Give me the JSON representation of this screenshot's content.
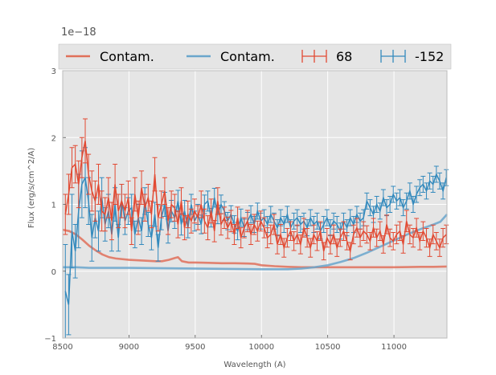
{
  "chart_data": {
    "type": "line",
    "title": "",
    "xlabel": "Wavelength (A)",
    "ylabel": "Flux (erg/s/cm^2/A)",
    "offset_text": "1e−18",
    "xlim": [
      8500,
      11400
    ],
    "ylim": [
      -1,
      3
    ],
    "x_ticks": [
      8500,
      9000,
      9500,
      10000,
      10500,
      11000
    ],
    "y_ticks": [
      -1,
      0,
      1,
      2,
      3
    ],
    "y_tick_labels": [
      "−1",
      "0",
      "1",
      "2",
      "3"
    ],
    "grid": true,
    "legend_position": "top",
    "legend": [
      {
        "label": "Contam.",
        "kind": "line",
        "color": "#e0705a"
      },
      {
        "label": "Contam.",
        "kind": "line",
        "color": "#6aa6cc"
      },
      {
        "label": "68",
        "kind": "errorbar",
        "color": "#e24a33"
      },
      {
        "label": "-152",
        "kind": "errorbar",
        "color": "#348abd"
      }
    ],
    "series": [
      {
        "name": "Contam.",
        "kind": "line",
        "color": "#e0705a",
        "x": [
          8500,
          8550,
          8600,
          8650,
          8700,
          8750,
          8800,
          8850,
          8900,
          9000,
          9100,
          9200,
          9250,
          9300,
          9350,
          9370,
          9400,
          9450,
          9500,
          9600,
          9700,
          9800,
          9900,
          9950,
          10000,
          10100,
          10200,
          10300,
          10400,
          10500,
          10600,
          10800,
          11000,
          11200,
          11300,
          11400
        ],
        "y": [
          0.62,
          0.6,
          0.55,
          0.47,
          0.38,
          0.31,
          0.25,
          0.21,
          0.19,
          0.17,
          0.16,
          0.15,
          0.15,
          0.17,
          0.2,
          0.21,
          0.15,
          0.13,
          0.13,
          0.125,
          0.12,
          0.12,
          0.115,
          0.11,
          0.09,
          0.075,
          0.065,
          0.06,
          0.06,
          0.06,
          0.06,
          0.06,
          0.06,
          0.065,
          0.065,
          0.07
        ]
      },
      {
        "name": "Contam.",
        "kind": "line",
        "color": "#6aa6cc",
        "x": [
          8500,
          8600,
          8700,
          8800,
          9000,
          9500,
          10000,
          10200,
          10300,
          10400,
          10500,
          10600,
          10700,
          10800,
          10900,
          11000,
          11100,
          11200,
          11300,
          11350,
          11400
        ],
        "y": [
          0.06,
          0.06,
          0.05,
          0.05,
          0.05,
          0.04,
          0.03,
          0.03,
          0.04,
          0.06,
          0.09,
          0.14,
          0.2,
          0.28,
          0.37,
          0.46,
          0.55,
          0.63,
          0.7,
          0.74,
          0.85
        ]
      },
      {
        "name": "68",
        "kind": "errorbar",
        "color": "#e24a33",
        "x": [
          8520,
          8545,
          8570,
          8595,
          8620,
          8645,
          8670,
          8695,
          8720,
          8745,
          8770,
          8795,
          8820,
          8845,
          8870,
          8895,
          8920,
          8945,
          8970,
          8995,
          9020,
          9045,
          9070,
          9095,
          9120,
          9145,
          9170,
          9195,
          9220,
          9245,
          9270,
          9295,
          9320,
          9345,
          9370,
          9395,
          9420,
          9445,
          9470,
          9495,
          9520,
          9545,
          9570,
          9595,
          9620,
          9645,
          9670,
          9695,
          9720,
          9745,
          9770,
          9795,
          9820,
          9845,
          9870,
          9895,
          9920,
          9945,
          9970,
          9995,
          10020,
          10045,
          10070,
          10095,
          10120,
          10145,
          10170,
          10195,
          10220,
          10245,
          10270,
          10295,
          10320,
          10345,
          10370,
          10395,
          10420,
          10445,
          10470,
          10495,
          10520,
          10545,
          10570,
          10595,
          10620,
          10645,
          10670,
          10695,
          10720,
          10745,
          10770,
          10795,
          10820,
          10845,
          10870,
          10895,
          10920,
          10945,
          10970,
          10995,
          11020,
          11045,
          11070,
          11095,
          11120,
          11145,
          11170,
          11195,
          11220,
          11245,
          11270,
          11295,
          11320,
          11345,
          11370,
          11395
        ],
        "y": [
          0.85,
          1.15,
          1.55,
          1.6,
          1.3,
          1.7,
          1.95,
          1.45,
          1.2,
          1.05,
          1.3,
          0.9,
          0.85,
          1.1,
          0.75,
          1.3,
          0.9,
          1.05,
          0.9,
          1.1,
          0.6,
          1.15,
          0.8,
          1.25,
          0.95,
          1.1,
          0.85,
          1.45,
          0.8,
          1.0,
          1.2,
          0.75,
          1.0,
          0.95,
          0.7,
          1.05,
          0.65,
          0.85,
          0.75,
          0.9,
          0.8,
          1.0,
          0.75,
          0.65,
          0.9,
          0.6,
          1.05,
          0.7,
          0.8,
          0.65,
          0.75,
          0.55,
          0.8,
          0.5,
          0.65,
          0.75,
          0.55,
          0.7,
          0.6,
          0.75,
          0.65,
          0.5,
          0.55,
          0.7,
          0.4,
          0.55,
          0.35,
          0.5,
          0.6,
          0.45,
          0.55,
          0.4,
          0.65,
          0.5,
          0.35,
          0.55,
          0.45,
          0.6,
          0.3,
          0.5,
          0.4,
          0.55,
          0.35,
          0.5,
          0.6,
          0.45,
          0.3,
          0.55,
          0.65,
          0.5,
          0.6,
          0.55,
          0.45,
          0.65,
          0.5,
          0.6,
          0.4,
          0.7,
          0.5,
          0.45,
          0.55,
          0.6,
          0.4,
          0.75,
          0.55,
          0.5,
          0.65,
          0.45,
          0.6,
          0.5,
          0.35,
          0.55,
          0.45,
          0.35,
          0.5,
          0.55
        ],
        "err": [
          0.3,
          0.3,
          0.3,
          0.28,
          0.35,
          0.3,
          0.33,
          0.3,
          0.3,
          0.3,
          0.3,
          0.3,
          0.25,
          0.3,
          0.28,
          0.3,
          0.25,
          0.25,
          0.25,
          0.25,
          0.2,
          0.25,
          0.25,
          0.25,
          0.2,
          0.2,
          0.2,
          0.25,
          0.2,
          0.2,
          0.2,
          0.2,
          0.2,
          0.2,
          0.2,
          0.2,
          0.18,
          0.2,
          0.18,
          0.18,
          0.18,
          0.2,
          0.18,
          0.18,
          0.18,
          0.16,
          0.2,
          0.16,
          0.16,
          0.16,
          0.16,
          0.15,
          0.16,
          0.15,
          0.15,
          0.16,
          0.15,
          0.15,
          0.15,
          0.15,
          0.15,
          0.15,
          0.14,
          0.15,
          0.14,
          0.15,
          0.14,
          0.14,
          0.14,
          0.14,
          0.14,
          0.14,
          0.14,
          0.14,
          0.14,
          0.14,
          0.14,
          0.14,
          0.13,
          0.14,
          0.14,
          0.14,
          0.13,
          0.13,
          0.14,
          0.13,
          0.13,
          0.14,
          0.14,
          0.13,
          0.14,
          0.13,
          0.13,
          0.14,
          0.13,
          0.14,
          0.13,
          0.14,
          0.13,
          0.13,
          0.14,
          0.14,
          0.13,
          0.16,
          0.14,
          0.14,
          0.14,
          0.13,
          0.14,
          0.14,
          0.13,
          0.14,
          0.13,
          0.13,
          0.14,
          0.14
        ]
      },
      {
        "name": "-152",
        "kind": "errorbar",
        "color": "#348abd",
        "x": [
          8520,
          8545,
          8570,
          8595,
          8620,
          8645,
          8670,
          8695,
          8720,
          8745,
          8770,
          8795,
          8820,
          8845,
          8870,
          8895,
          8920,
          8945,
          8970,
          8995,
          9020,
          9045,
          9070,
          9095,
          9120,
          9145,
          9170,
          9195,
          9220,
          9245,
          9270,
          9295,
          9320,
          9345,
          9370,
          9395,
          9420,
          9445,
          9470,
          9495,
          9520,
          9545,
          9570,
          9595,
          9620,
          9645,
          9670,
          9695,
          9720,
          9745,
          9770,
          9795,
          9820,
          9845,
          9870,
          9895,
          9920,
          9945,
          9970,
          9995,
          10020,
          10045,
          10070,
          10095,
          10120,
          10145,
          10170,
          10195,
          10220,
          10245,
          10270,
          10295,
          10320,
          10345,
          10370,
          10395,
          10420,
          10445,
          10470,
          10495,
          10520,
          10545,
          10570,
          10595,
          10620,
          10645,
          10670,
          10695,
          10720,
          10745,
          10770,
          10795,
          10820,
          10845,
          10870,
          10895,
          10920,
          10945,
          10970,
          10995,
          11020,
          11045,
          11070,
          11095,
          11120,
          11145,
          11170,
          11195,
          11220,
          11245,
          11270,
          11295,
          11320,
          11345,
          11370,
          11395
        ],
        "y": [
          -0.3,
          -0.5,
          0.6,
          0.3,
          0.9,
          1.3,
          1.4,
          1.05,
          0.5,
          0.8,
          0.6,
          1.1,
          0.7,
          0.9,
          0.55,
          1.0,
          0.5,
          1.05,
          0.75,
          0.9,
          0.95,
          0.55,
          0.8,
          0.6,
          1.05,
          0.7,
          0.5,
          0.85,
          0.35,
          0.8,
          1.0,
          0.6,
          0.9,
          0.8,
          1.05,
          0.7,
          0.9,
          0.65,
          1.0,
          0.75,
          0.85,
          0.7,
          1.0,
          1.05,
          0.8,
          1.1,
          0.85,
          1.0,
          0.9,
          0.75,
          0.85,
          0.7,
          0.6,
          0.8,
          0.65,
          0.75,
          0.85,
          0.7,
          0.9,
          0.75,
          0.8,
          0.7,
          0.85,
          0.75,
          0.65,
          0.8,
          0.7,
          0.85,
          0.65,
          0.75,
          0.8,
          0.7,
          0.75,
          0.65,
          0.8,
          0.7,
          0.75,
          0.6,
          0.7,
          0.8,
          0.65,
          0.75,
          0.7,
          0.6,
          0.75,
          0.65,
          0.8,
          0.7,
          0.85,
          0.75,
          0.8,
          1.05,
          0.95,
          0.85,
          1.0,
          0.9,
          1.1,
          0.95,
          1.0,
          1.15,
          1.05,
          1.1,
          0.95,
          1.05,
          1.2,
          1.0,
          1.15,
          1.25,
          1.3,
          1.2,
          1.35,
          1.3,
          1.45,
          1.35,
          1.2,
          1.4
        ],
        "err": [
          0.7,
          0.45,
          0.55,
          0.4,
          0.55,
          0.5,
          0.45,
          0.35,
          0.35,
          0.3,
          0.3,
          0.3,
          0.25,
          0.25,
          0.25,
          0.25,
          0.2,
          0.25,
          0.2,
          0.2,
          0.2,
          0.2,
          0.2,
          0.2,
          0.2,
          0.18,
          0.18,
          0.18,
          0.2,
          0.18,
          0.18,
          0.18,
          0.16,
          0.16,
          0.16,
          0.16,
          0.16,
          0.15,
          0.15,
          0.15,
          0.15,
          0.14,
          0.14,
          0.15,
          0.14,
          0.14,
          0.14,
          0.14,
          0.14,
          0.13,
          0.13,
          0.13,
          0.13,
          0.13,
          0.13,
          0.13,
          0.13,
          0.12,
          0.12,
          0.12,
          0.12,
          0.12,
          0.12,
          0.12,
          0.12,
          0.12,
          0.12,
          0.12,
          0.12,
          0.12,
          0.12,
          0.12,
          0.12,
          0.12,
          0.12,
          0.12,
          0.12,
          0.12,
          0.12,
          0.12,
          0.12,
          0.12,
          0.12,
          0.12,
          0.12,
          0.12,
          0.12,
          0.12,
          0.12,
          0.12,
          0.12,
          0.12,
          0.12,
          0.12,
          0.12,
          0.12,
          0.12,
          0.12,
          0.12,
          0.12,
          0.12,
          0.12,
          0.12,
          0.12,
          0.12,
          0.12,
          0.12,
          0.12,
          0.12,
          0.12,
          0.12,
          0.12,
          0.12,
          0.12,
          0.12,
          0.12
        ]
      }
    ]
  }
}
